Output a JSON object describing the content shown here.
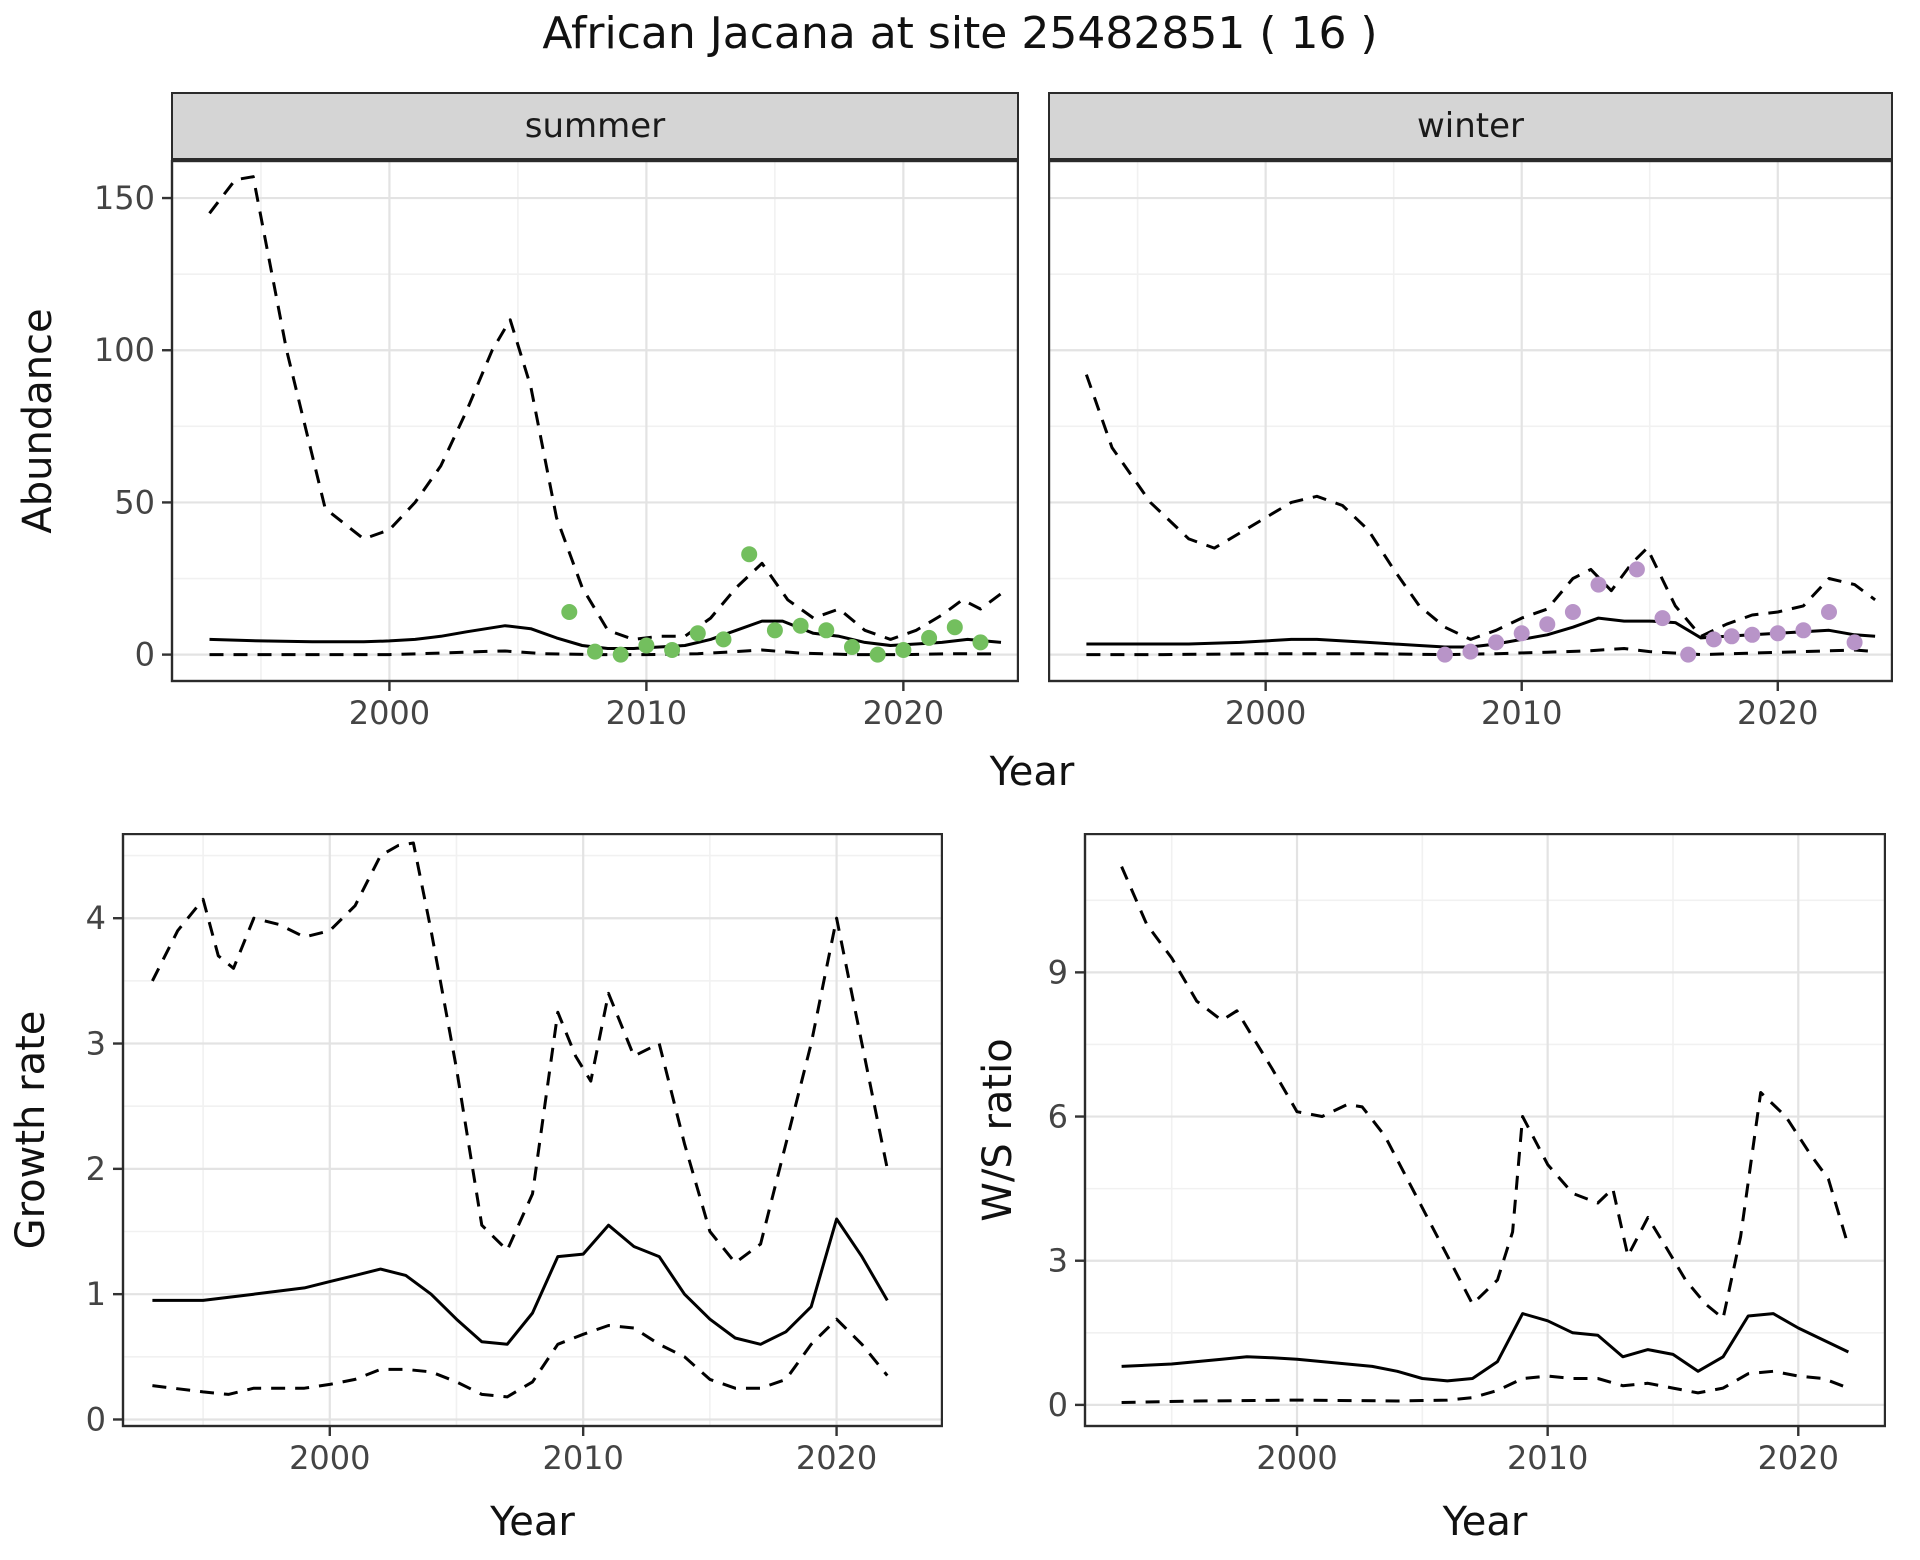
{
  "title": "African Jacana at site 25482851 ( 16 )",
  "colors": {
    "summer_points": "#73bf5e",
    "winter_points": "#b894c8",
    "line": "#000000",
    "grid_major": "#e3e3e3",
    "grid_minor": "#f1f1f1",
    "strip_bg": "#d5d5d5",
    "panel_border": "#2b2b2b",
    "tick_text": "#444444"
  },
  "chart_data": [
    {
      "type": "line",
      "name": "abundance-summer",
      "facet": "summer",
      "ylabel": "Abundance",
      "xlabel": "Year",
      "xlim": [
        1991.5,
        2024.5
      ],
      "ylim": [
        -9,
        162.5
      ],
      "xticks": [
        2000,
        2010,
        2020
      ],
      "yticks": [
        0,
        50,
        100,
        150
      ],
      "xticks_minor": [
        1995,
        2005,
        2015
      ],
      "yticks_minor": [
        25,
        75,
        125
      ],
      "series": [
        {
          "name": "upper_ci",
          "style": "dashed",
          "x": [
            1993,
            1994,
            1994.7,
            1996,
            1997.5,
            1999,
            2000,
            2001,
            2002,
            2003,
            2004,
            2004.7,
            2005.5,
            2006.5,
            2007.5,
            2008.5,
            2009.5,
            2010.5,
            2011.5,
            2012.5,
            2013.5,
            2014.5,
            2015.5,
            2016.5,
            2017.5,
            2018.5,
            2019.5,
            2020.5,
            2021.5,
            2022.3,
            2023,
            2023.8
          ],
          "y": [
            145,
            156,
            157,
            100,
            48,
            38,
            41,
            50,
            62,
            80,
            100,
            110,
            88,
            45,
            22,
            8,
            5,
            6,
            6,
            12,
            22,
            30,
            18,
            12,
            15,
            8,
            5,
            8,
            13,
            18,
            15,
            20
          ]
        },
        {
          "name": "fit",
          "style": "solid",
          "x": [
            1993,
            1995,
            1997,
            1999,
            2000,
            2001,
            2002,
            2003,
            2004.5,
            2005.5,
            2006.5,
            2007.5,
            2008.5,
            2009.5,
            2010.5,
            2011.5,
            2012.5,
            2013.5,
            2014.5,
            2015.3,
            2016.5,
            2017.5,
            2018.5,
            2019.5,
            2020.5,
            2021.5,
            2022.5,
            2023.8
          ],
          "y": [
            5,
            4.5,
            4.2,
            4.2,
            4.5,
            5,
            6,
            7.5,
            9.5,
            8.5,
            5.5,
            3,
            2,
            2,
            2.5,
            3,
            5,
            8,
            11,
            11,
            7,
            6,
            4,
            3,
            3.5,
            4,
            5,
            4
          ]
        },
        {
          "name": "lower_ci",
          "style": "dashed",
          "x": [
            1993,
            1996,
            2000,
            2002,
            2003.5,
            2004.5,
            2006,
            2008,
            2010,
            2012,
            2013.5,
            2014.5,
            2016,
            2018,
            2020,
            2022,
            2023.8
          ],
          "y": [
            0,
            0,
            0,
            0.5,
            1,
            1.2,
            0.3,
            0,
            0,
            0.3,
            1,
            1.5,
            0.5,
            0,
            0,
            0.3,
            0.2
          ]
        },
        {
          "name": "observed",
          "style": "points",
          "color": "#73bf5e",
          "x": [
            2007,
            2008,
            2009,
            2010,
            2011,
            2012,
            2013,
            2014,
            2015,
            2016,
            2017,
            2018,
            2019,
            2020,
            2021,
            2022,
            2023
          ],
          "y": [
            14,
            1,
            0,
            3,
            1.5,
            7,
            5,
            33,
            8,
            9.5,
            8,
            2.5,
            0,
            1.5,
            5.5,
            9,
            4
          ]
        }
      ]
    },
    {
      "type": "line",
      "name": "abundance-winter",
      "facet": "winter",
      "ylabel": "Abundance",
      "xlabel": "Year",
      "xlim": [
        1991.5,
        2024.5
      ],
      "ylim": [
        -9,
        162.5
      ],
      "xticks": [
        2000,
        2010,
        2020
      ],
      "yticks": [
        0,
        50,
        100,
        150
      ],
      "xticks_minor": [
        1995,
        2005,
        2015
      ],
      "yticks_minor": [
        25,
        75,
        125
      ],
      "series": [
        {
          "name": "upper_ci",
          "style": "dashed",
          "x": [
            1993,
            1994,
            1995.5,
            1997,
            1998,
            1999,
            2000,
            2001,
            2002,
            2003,
            2004,
            2005,
            2006,
            2007,
            2008,
            2009,
            2010,
            2011,
            2012,
            2012.7,
            2013.5,
            2014.3,
            2014.9,
            2016,
            2017,
            2018,
            2019,
            2020,
            2021,
            2022,
            2023,
            2023.8
          ],
          "y": [
            92,
            68,
            50,
            38,
            35,
            40,
            45,
            50,
            52,
            49,
            41,
            28,
            16,
            9,
            5,
            8,
            12,
            15,
            25,
            28,
            21,
            30,
            35,
            16,
            6,
            10,
            13,
            14,
            16,
            25,
            23,
            18
          ]
        },
        {
          "name": "fit",
          "style": "solid",
          "x": [
            1993,
            1995,
            1997,
            1999,
            2001,
            2002,
            2004,
            2006,
            2007,
            2008,
            2009,
            2010,
            2011,
            2012,
            2013,
            2014,
            2015,
            2016,
            2017,
            2018,
            2019,
            2020,
            2021,
            2022,
            2023,
            2023.8
          ],
          "y": [
            3.5,
            3.5,
            3.5,
            4,
            5,
            5,
            4,
            3,
            2.5,
            2.5,
            3.5,
            5,
            6.5,
            9,
            12,
            11,
            11,
            10.5,
            5.5,
            6,
            6.5,
            7,
            7.5,
            8,
            6.5,
            6
          ]
        },
        {
          "name": "lower_ci",
          "style": "dashed",
          "x": [
            1993,
            1996,
            2000,
            2004,
            2007,
            2009,
            2011,
            2012.5,
            2014,
            2015,
            2017,
            2019,
            2021,
            2023,
            2023.8
          ],
          "y": [
            0,
            0,
            0.3,
            0.3,
            0,
            0.3,
            0.8,
            1.2,
            2,
            1,
            0,
            0.5,
            1,
            1.5,
            1
          ]
        },
        {
          "name": "observed",
          "style": "points",
          "color": "#b894c8",
          "x": [
            2007,
            2008,
            2009,
            2010,
            2011,
            2012,
            2013,
            2014.5,
            2015.5,
            2016.5,
            2017.5,
            2018.2,
            2019,
            2020,
            2021,
            2022,
            2023
          ],
          "y": [
            0,
            1,
            4,
            7,
            10,
            14,
            23,
            28,
            12,
            0,
            5,
            6,
            6.5,
            7,
            8,
            14,
            4
          ]
        }
      ]
    },
    {
      "type": "line",
      "name": "growth-rate",
      "facet": "",
      "ylabel": "Growth rate",
      "xlabel": "Year",
      "xlim": [
        1991.8,
        2024.2
      ],
      "ylim": [
        -0.06,
        4.68
      ],
      "xticks": [
        2000,
        2010,
        2020
      ],
      "yticks": [
        0,
        1,
        2,
        3,
        4
      ],
      "xticks_minor": [
        1995,
        2005,
        2015
      ],
      "yticks_minor": [
        0.5,
        1.5,
        2.5,
        3.5,
        4.5
      ],
      "series": [
        {
          "name": "upper_ci",
          "style": "dashed",
          "x": [
            1993,
            1994,
            1995,
            1995.6,
            1996.2,
            1997,
            1998,
            1999,
            2000,
            2001,
            2002,
            2002.7,
            2003.3,
            2004,
            2005,
            2006,
            2007,
            2008,
            2009,
            2009.7,
            2010.3,
            2011,
            2012,
            2013,
            2014,
            2015,
            2016,
            2017,
            2018,
            2019,
            2020,
            2021,
            2022
          ],
          "y": [
            3.5,
            3.9,
            4.15,
            3.7,
            3.6,
            4.0,
            3.95,
            3.85,
            3.9,
            4.1,
            4.5,
            4.58,
            4.6,
            3.9,
            2.8,
            1.55,
            1.35,
            1.8,
            3.25,
            2.9,
            2.7,
            3.4,
            2.9,
            3.0,
            2.2,
            1.5,
            1.25,
            1.4,
            2.2,
            3.0,
            4.0,
            3.0,
            2.0
          ]
        },
        {
          "name": "fit",
          "style": "solid",
          "x": [
            1993,
            1995,
            1997,
            1999,
            2000,
            2001,
            2002,
            2003,
            2004,
            2005,
            2006,
            2007,
            2008,
            2009,
            2010,
            2011,
            2012,
            2013,
            2014,
            2015,
            2016,
            2017,
            2018,
            2019,
            2020,
            2021,
            2022
          ],
          "y": [
            0.95,
            0.95,
            1.0,
            1.05,
            1.1,
            1.15,
            1.2,
            1.15,
            1.0,
            0.8,
            0.62,
            0.6,
            0.85,
            1.3,
            1.32,
            1.55,
            1.38,
            1.3,
            1.0,
            0.8,
            0.65,
            0.6,
            0.7,
            0.9,
            1.6,
            1.3,
            0.95
          ]
        },
        {
          "name": "lower_ci",
          "style": "dashed",
          "x": [
            1993,
            1995,
            1996,
            1997,
            1999,
            2000,
            2001,
            2002,
            2003,
            2004,
            2005,
            2006,
            2007,
            2008,
            2009,
            2010,
            2011,
            2012,
            2013,
            2014,
            2015,
            2016,
            2017,
            2018,
            2019,
            2020,
            2021,
            2022
          ],
          "y": [
            0.27,
            0.22,
            0.2,
            0.25,
            0.25,
            0.28,
            0.32,
            0.4,
            0.4,
            0.38,
            0.3,
            0.2,
            0.18,
            0.3,
            0.6,
            0.68,
            0.75,
            0.73,
            0.6,
            0.5,
            0.32,
            0.25,
            0.25,
            0.32,
            0.6,
            0.8,
            0.6,
            0.35
          ]
        }
      ]
    },
    {
      "type": "line",
      "name": "ws-ratio",
      "facet": "",
      "ylabel": "W/S ratio",
      "xlabel": "Year",
      "xlim": [
        1991.5,
        2023.5
      ],
      "ylim": [
        -0.46,
        11.9
      ],
      "xticks": [
        2000,
        2010,
        2020
      ],
      "yticks": [
        0,
        3,
        6,
        9
      ],
      "xticks_minor": [
        1995,
        2005,
        2015
      ],
      "yticks_minor": [
        1.5,
        4.5,
        7.5,
        10.5
      ],
      "series": [
        {
          "name": "upper_ci",
          "style": "dashed",
          "x": [
            1993,
            1994,
            1995,
            1996,
            1997,
            1997.6,
            1998.3,
            1999,
            2000,
            2001,
            2002,
            2002.6,
            2003.5,
            2004.5,
            2005.5,
            2006.5,
            2007,
            2008,
            2008.6,
            2009,
            2010,
            2011,
            2012,
            2012.6,
            2013.2,
            2014,
            2014.7,
            2015.5,
            2016.3,
            2017,
            2017.7,
            2018.5,
            2019.5,
            2020.5,
            2021.2,
            2022
          ],
          "y": [
            11.2,
            10.0,
            9.3,
            8.4,
            8.0,
            8.2,
            7.6,
            7.0,
            6.1,
            6.0,
            6.25,
            6.2,
            5.6,
            4.6,
            3.6,
            2.6,
            2.1,
            2.6,
            3.6,
            6.0,
            5.0,
            4.4,
            4.2,
            4.5,
            3.1,
            3.9,
            3.3,
            2.6,
            2.1,
            1.8,
            3.5,
            6.5,
            6.0,
            5.2,
            4.7,
            3.3
          ]
        },
        {
          "name": "fit",
          "style": "solid",
          "x": [
            1993,
            1995,
            1997,
            1998,
            1999,
            2000,
            2001,
            2002,
            2003,
            2004,
            2005,
            2006,
            2007,
            2008,
            2009,
            2010,
            2011,
            2012,
            2013,
            2014,
            2015,
            2016,
            2017,
            2018,
            2019,
            2020,
            2021,
            2022
          ],
          "y": [
            0.8,
            0.85,
            0.95,
            1.0,
            0.98,
            0.95,
            0.9,
            0.85,
            0.8,
            0.7,
            0.55,
            0.5,
            0.55,
            0.9,
            1.9,
            1.75,
            1.5,
            1.45,
            1.0,
            1.15,
            1.05,
            0.7,
            1.0,
            1.85,
            1.9,
            1.6,
            1.35,
            1.1
          ]
        },
        {
          "name": "lower_ci",
          "style": "dashed",
          "x": [
            1993,
            1996,
            2000,
            2004,
            2006,
            2007,
            2008,
            2009,
            2010,
            2011,
            2012,
            2013,
            2014,
            2015,
            2016,
            2017,
            2018,
            2019,
            2020,
            2021,
            2022
          ],
          "y": [
            0.05,
            0.08,
            0.1,
            0.08,
            0.1,
            0.15,
            0.3,
            0.55,
            0.6,
            0.55,
            0.55,
            0.4,
            0.45,
            0.35,
            0.25,
            0.35,
            0.65,
            0.7,
            0.6,
            0.55,
            0.35
          ]
        }
      ]
    }
  ]
}
